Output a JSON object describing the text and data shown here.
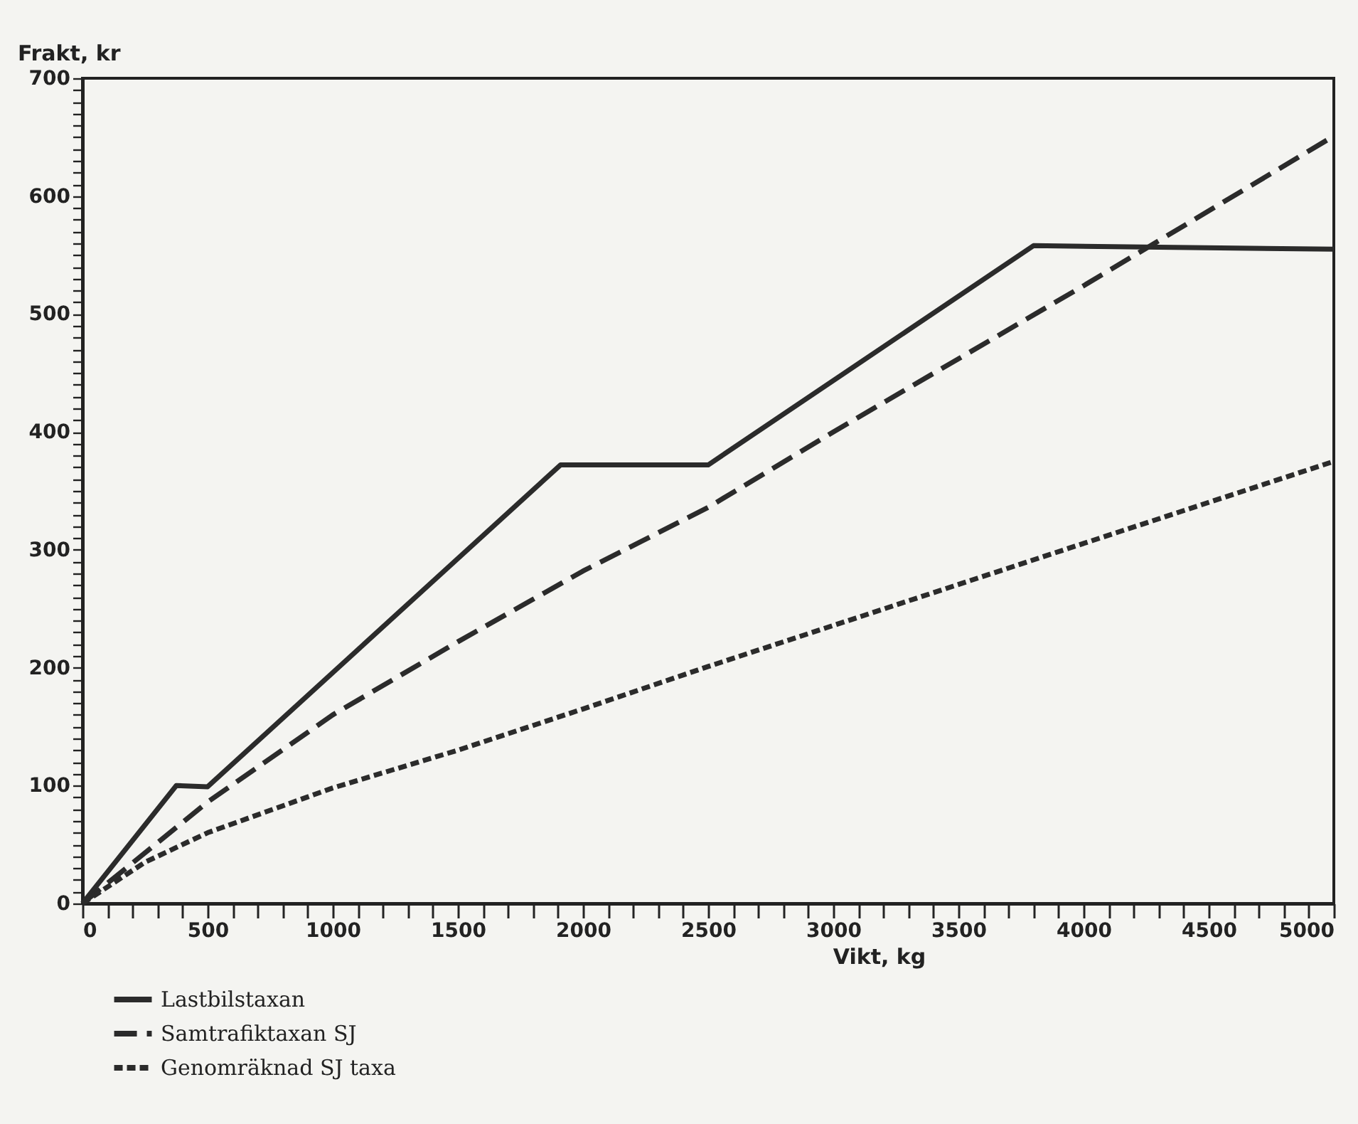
{
  "chart_data": {
    "type": "line",
    "xlabel": "Vikt, kg",
    "ylabel": "Frakt, kr",
    "xlim": [
      0,
      5000
    ],
    "ylim": [
      0,
      700
    ],
    "xticks": [
      0,
      {
        "value": 100,
        "label": null
      },
      {
        "value": 200,
        "label": null
      },
      {
        "value": 300,
        "label": null
      },
      {
        "value": 400,
        "label": null
      },
      500,
      {
        "value": 600,
        "label": null
      },
      {
        "value": 700,
        "label": null
      },
      {
        "value": 800,
        "label": null
      },
      {
        "value": 900,
        "label": null
      },
      1000,
      {
        "value": 1100,
        "label": null
      },
      {
        "value": 1200,
        "label": null
      },
      {
        "value": 1300,
        "label": null
      },
      {
        "value": 1400,
        "label": null
      },
      1500,
      {
        "value": 1600,
        "label": null
      },
      {
        "value": 1700,
        "label": null
      },
      {
        "value": 1800,
        "label": null
      },
      {
        "value": 1900,
        "label": null
      },
      2000,
      {
        "value": 2100,
        "label": null
      },
      {
        "value": 2200,
        "label": null
      },
      {
        "value": 2300,
        "label": null
      },
      {
        "value": 2400,
        "label": null
      },
      2500,
      {
        "value": 2600,
        "label": null
      },
      {
        "value": 2700,
        "label": null
      },
      {
        "value": 2800,
        "label": null
      },
      {
        "value": 2900,
        "label": null
      },
      3000,
      {
        "value": 3100,
        "label": null
      },
      {
        "value": 3200,
        "label": null
      },
      {
        "value": 3300,
        "label": null
      },
      {
        "value": 3400,
        "label": null
      },
      3500,
      {
        "value": 3600,
        "label": null
      },
      {
        "value": 3700,
        "label": null
      },
      {
        "value": 3800,
        "label": null
      },
      {
        "value": 3900,
        "label": null
      },
      4000,
      {
        "value": 4100,
        "label": null
      },
      {
        "value": 4200,
        "label": null
      },
      {
        "value": 4300,
        "label": null
      },
      {
        "value": 4400,
        "label": null
      },
      4500,
      {
        "value": 4600,
        "label": null
      },
      {
        "value": 4700,
        "label": null
      },
      {
        "value": 4800,
        "label": null
      },
      {
        "value": 4900,
        "label": null
      },
      5000
    ],
    "yticks": [
      0,
      {
        "value": 10,
        "label": null
      },
      {
        "value": 20,
        "label": null
      },
      {
        "value": 30,
        "label": null
      },
      {
        "value": 40,
        "label": null
      },
      {
        "value": 50,
        "label": null
      },
      {
        "value": 60,
        "label": null
      },
      {
        "value": 70,
        "label": null
      },
      {
        "value": 80,
        "label": null
      },
      {
        "value": 90,
        "label": null
      },
      100,
      {
        "value": 110,
        "label": null
      },
      {
        "value": 120,
        "label": null
      },
      {
        "value": 130,
        "label": null
      },
      {
        "value": 140,
        "label": null
      },
      {
        "value": 150,
        "label": null
      },
      {
        "value": 160,
        "label": null
      },
      {
        "value": 170,
        "label": null
      },
      {
        "value": 180,
        "label": null
      },
      {
        "value": 190,
        "label": null
      },
      200,
      {
        "value": 210,
        "label": null
      },
      {
        "value": 220,
        "label": null
      },
      {
        "value": 230,
        "label": null
      },
      {
        "value": 240,
        "label": null
      },
      {
        "value": 250,
        "label": null
      },
      {
        "value": 260,
        "label": null
      },
      {
        "value": 270,
        "label": null
      },
      {
        "value": 280,
        "label": null
      },
      {
        "value": 290,
        "label": null
      },
      300,
      {
        "value": 310,
        "label": null
      },
      {
        "value": 320,
        "label": null
      },
      {
        "value": 330,
        "label": null
      },
      {
        "value": 340,
        "label": null
      },
      {
        "value": 350,
        "label": null
      },
      {
        "value": 360,
        "label": null
      },
      {
        "value": 370,
        "label": null
      },
      {
        "value": 380,
        "label": null
      },
      {
        "value": 390,
        "label": null
      },
      400,
      {
        "value": 410,
        "label": null
      },
      {
        "value": 420,
        "label": null
      },
      {
        "value": 430,
        "label": null
      },
      {
        "value": 440,
        "label": null
      },
      {
        "value": 450,
        "label": null
      },
      {
        "value": 460,
        "label": null
      },
      {
        "value": 470,
        "label": null
      },
      {
        "value": 480,
        "label": null
      },
      {
        "value": 490,
        "label": null
      },
      500,
      {
        "value": 510,
        "label": null
      },
      {
        "value": 520,
        "label": null
      },
      {
        "value": 530,
        "label": null
      },
      {
        "value": 540,
        "label": null
      },
      {
        "value": 550,
        "label": null
      },
      {
        "value": 560,
        "label": null
      },
      {
        "value": 570,
        "label": null
      },
      {
        "value": 580,
        "label": null
      },
      {
        "value": 590,
        "label": null
      },
      600,
      {
        "value": 610,
        "label": null
      },
      {
        "value": 620,
        "label": null
      },
      {
        "value": 630,
        "label": null
      },
      {
        "value": 640,
        "label": null
      },
      {
        "value": 650,
        "label": null
      },
      {
        "value": 660,
        "label": null
      },
      {
        "value": 670,
        "label": null
      },
      {
        "value": 680,
        "label": null
      },
      {
        "value": 690,
        "label": null
      },
      700
    ],
    "legend": "bottom left",
    "marker": "none",
    "series": [
      {
        "name": "Lastbilstaxan",
        "color": "#2b2b2b",
        "line_style": "solid",
        "x": [
          0,
          375,
          500,
          1910,
          2500,
          3800,
          5000
        ],
        "values": [
          0,
          100,
          99,
          372,
          372,
          558,
          555
        ]
      },
      {
        "name": "Samtrafiktaxan SJ",
        "color": "#2b2b2b",
        "line_style": "dashed",
        "x": [
          0,
          500,
          1000,
          1500,
          2000,
          2500,
          3000,
          4000,
          5000
        ],
        "values": [
          0,
          86,
          160,
          222,
          282,
          336,
          400,
          524,
          651
        ]
      },
      {
        "name": "Genomräknad SJ taxa",
        "color": "#2b2b2b",
        "line_style": "dotted",
        "x": [
          0,
          250,
          500,
          1000,
          1500,
          2000,
          2500,
          5000
        ],
        "values": [
          0,
          35,
          60,
          98,
          130,
          165,
          201,
          375
        ]
      }
    ]
  }
}
